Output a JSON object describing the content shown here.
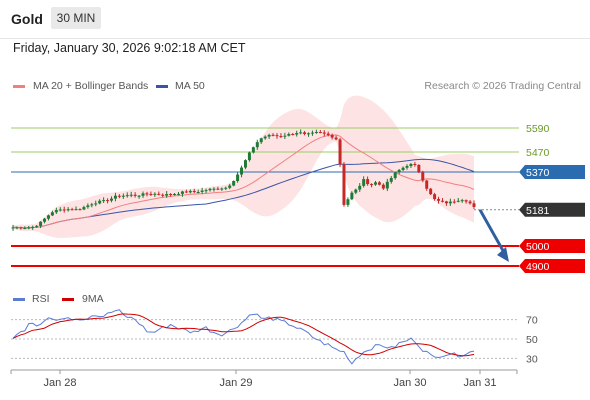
{
  "header": {
    "title": "Gold",
    "timeframe": "30 MIN",
    "datetime": "Friday, January 30, 2026 9:02:18 AM CET"
  },
  "legend": {
    "ma_bb": "MA 20 + Bollinger Bands",
    "ma50": "MA 50",
    "credit": "Research © 2026 Trading Central"
  },
  "rsi_legend": {
    "rsi": "RSI",
    "ma": "9MA"
  },
  "colors": {
    "up": "#1e7a34",
    "down": "#c62828",
    "ma20": "#f08080",
    "band": "#fde3e3",
    "ma50": "#3a55a8",
    "rsi": "#5b7bd5",
    "rsi_ma": "#d00000",
    "resistance": "#9ccc65",
    "pivot": "#2b6cb0",
    "support": "#ee0000",
    "current": "#333333",
    "arrow": "#2f5f9f"
  },
  "chart_data": [
    {
      "type": "candlestick",
      "xlabel": "",
      "ylabel": "",
      "x_ticks": [
        "Jan 28",
        "Jan 29",
        "Jan 30",
        "Jan 31"
      ],
      "ylim": [
        4850,
        5690
      ],
      "levels": [
        {
          "value": 5590,
          "label": "5590",
          "kind": "resistance"
        },
        {
          "value": 5470,
          "label": "5470",
          "kind": "resistance"
        },
        {
          "value": 5370,
          "label": "5370",
          "kind": "pivot"
        },
        {
          "value": 5181,
          "label": "5181",
          "kind": "current"
        },
        {
          "value": 5000,
          "label": "5000",
          "kind": "support"
        },
        {
          "value": 4900,
          "label": "4900",
          "kind": "support"
        }
      ],
      "close_anchors": [
        5093,
        5092,
        5092,
        5095,
        5110,
        5140,
        5170,
        5180,
        5183,
        5185,
        5182,
        5195,
        5210,
        5220,
        5225,
        5235,
        5250,
        5252,
        5255,
        5252,
        5258,
        5262,
        5260,
        5255,
        5258,
        5262,
        5268,
        5272,
        5270,
        5275,
        5282,
        5285,
        5290,
        5292,
        5330,
        5378,
        5440,
        5495,
        5535,
        5550,
        5555,
        5548,
        5555,
        5560,
        5570,
        5555,
        5562,
        5568,
        5560,
        5550,
        5530,
        5200,
        5260,
        5285,
        5330,
        5305,
        5320,
        5290,
        5330,
        5370,
        5390,
        5410,
        5400,
        5340,
        5270,
        5230,
        5220,
        5215,
        5225,
        5235,
        5225,
        5195
      ],
      "candle_count": 118,
      "overlays": [
        "MA 20",
        "Bollinger Bands",
        "MA 50"
      ],
      "projection": {
        "from": 5181,
        "to": 4900
      }
    },
    {
      "type": "line",
      "series": [
        {
          "name": "RSI"
        },
        {
          "name": "9MA"
        }
      ],
      "y_ticks": [
        30,
        50,
        70
      ],
      "ylim": [
        20,
        82
      ],
      "rsi_anchors": [
        52,
        55,
        60,
        70,
        64,
        68,
        72,
        70,
        68,
        74,
        71,
        72,
        70,
        73,
        76,
        73,
        75,
        78,
        80,
        74,
        72,
        70,
        64,
        58,
        56,
        60,
        62,
        65,
        62,
        60,
        58,
        57,
        60,
        62,
        58,
        56,
        55,
        58,
        62,
        66,
        71,
        78,
        74,
        70,
        72,
        70,
        68,
        66,
        64,
        60,
        58,
        53,
        50,
        46,
        44,
        40,
        38,
        36,
        24,
        32,
        36,
        40,
        42,
        44,
        42,
        40,
        45,
        47,
        50,
        48,
        40,
        36,
        30,
        33,
        34,
        35,
        33,
        34,
        36,
        37
      ]
    }
  ]
}
